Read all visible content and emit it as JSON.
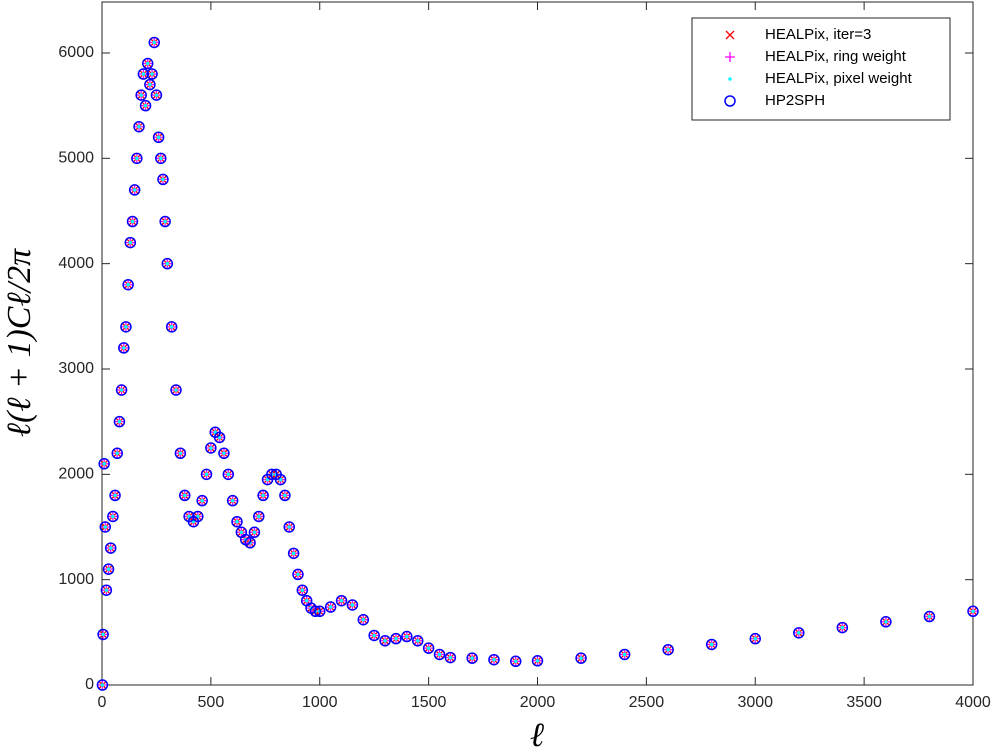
{
  "chart_data": {
    "type": "scatter",
    "x_label": "ℓ",
    "y_label": "ℓ(ℓ + 1)Cℓ/2π",
    "xlim": [
      0,
      4000
    ],
    "ylim": [
      0,
      6484
    ],
    "xticks": [
      0,
      500,
      1000,
      1500,
      2000,
      2500,
      3000,
      3500,
      4000
    ],
    "yticks": [
      0,
      1000,
      2000,
      3000,
      4000,
      5000,
      6000
    ],
    "grid": false,
    "legend": "upper right",
    "x": [
      2,
      5,
      10,
      15,
      20,
      30,
      40,
      50,
      60,
      70,
      80,
      90,
      100,
      110,
      120,
      130,
      140,
      150,
      160,
      170,
      180,
      190,
      200,
      210,
      220,
      230,
      240,
      250,
      260,
      270,
      280,
      290,
      300,
      320,
      340,
      360,
      380,
      400,
      420,
      440,
      460,
      480,
      500,
      520,
      540,
      560,
      580,
      600,
      620,
      640,
      660,
      680,
      700,
      720,
      740,
      760,
      780,
      800,
      820,
      840,
      860,
      880,
      900,
      920,
      940,
      960,
      980,
      1000,
      1050,
      1100,
      1150,
      1200,
      1250,
      1300,
      1350,
      1400,
      1450,
      1500,
      1550,
      1600,
      1700,
      1800,
      1900,
      2000,
      2200,
      2400,
      2600,
      2800,
      3000,
      3200,
      3400,
      3600,
      3800,
      4000
    ],
    "series": [
      {
        "name": "HEALPix, iter=3",
        "color": "#ff0000",
        "marker": "x",
        "values": [
          0,
          480,
          2100,
          1500,
          900,
          1100,
          1300,
          1600,
          1800,
          2200,
          2500,
          2800,
          3200,
          3400,
          3800,
          4200,
          4400,
          4700,
          5000,
          5300,
          5600,
          5800,
          5500,
          5900,
          5700,
          5800,
          6100,
          5600,
          5200,
          5000,
          4800,
          4400,
          4000,
          3400,
          2800,
          2200,
          1800,
          1600,
          1550,
          1600,
          1750,
          2000,
          2250,
          2400,
          2350,
          2200,
          2000,
          1750,
          1550,
          1450,
          1380,
          1350,
          1450,
          1600,
          1800,
          1950,
          2000,
          2000,
          1950,
          1800,
          1500,
          1250,
          1050,
          900,
          800,
          730,
          700,
          700,
          740,
          800,
          760,
          620,
          470,
          420,
          440,
          460,
          420,
          350,
          290,
          260,
          255,
          240,
          225,
          230,
          255,
          290,
          335,
          385,
          440,
          495,
          545,
          600,
          650,
          700
        ]
      },
      {
        "name": "HEALPix, ring weight",
        "color": "#ff00ff",
        "marker": "+",
        "values": [
          0,
          480,
          2100,
          1500,
          900,
          1100,
          1300,
          1600,
          1800,
          2200,
          2500,
          2800,
          3200,
          3400,
          3800,
          4200,
          4400,
          4700,
          5000,
          5300,
          5600,
          5800,
          5500,
          5900,
          5700,
          5800,
          6100,
          5600,
          5200,
          5000,
          4800,
          4400,
          4000,
          3400,
          2800,
          2200,
          1800,
          1600,
          1550,
          1600,
          1750,
          2000,
          2250,
          2400,
          2350,
          2200,
          2000,
          1750,
          1550,
          1450,
          1380,
          1350,
          1450,
          1600,
          1800,
          1950,
          2000,
          2000,
          1950,
          1800,
          1500,
          1250,
          1050,
          900,
          800,
          730,
          700,
          700,
          740,
          800,
          760,
          620,
          470,
          420,
          440,
          460,
          420,
          350,
          290,
          260,
          255,
          240,
          225,
          230,
          255,
          290,
          335,
          385,
          440,
          495,
          545,
          600,
          650,
          700
        ]
      },
      {
        "name": "HEALPix, pixel weight",
        "color": "#00ffff",
        "marker": ".",
        "values": [
          0,
          480,
          2100,
          1500,
          900,
          1100,
          1300,
          1600,
          1800,
          2200,
          2500,
          2800,
          3200,
          3400,
          3800,
          4200,
          4400,
          4700,
          5000,
          5300,
          5600,
          5800,
          5500,
          5900,
          5700,
          5800,
          6100,
          5600,
          5200,
          5000,
          4800,
          4400,
          4000,
          3400,
          2800,
          2200,
          1800,
          1600,
          1550,
          1600,
          1750,
          2000,
          2250,
          2400,
          2350,
          2200,
          2000,
          1750,
          1550,
          1450,
          1380,
          1350,
          1450,
          1600,
          1800,
          1950,
          2000,
          2000,
          1950,
          1800,
          1500,
          1250,
          1050,
          900,
          800,
          730,
          700,
          700,
          740,
          800,
          760,
          620,
          470,
          420,
          440,
          460,
          420,
          350,
          290,
          260,
          255,
          240,
          225,
          230,
          255,
          290,
          335,
          385,
          440,
          495,
          545,
          600,
          650,
          700
        ]
      },
      {
        "name": "HP2SPH",
        "color": "#0000ff",
        "marker": "o",
        "values": [
          0,
          480,
          2100,
          1500,
          900,
          1100,
          1300,
          1600,
          1800,
          2200,
          2500,
          2800,
          3200,
          3400,
          3800,
          4200,
          4400,
          4700,
          5000,
          5300,
          5600,
          5800,
          5500,
          5900,
          5700,
          5800,
          6100,
          5600,
          5200,
          5000,
          4800,
          4400,
          4000,
          3400,
          2800,
          2200,
          1800,
          1600,
          1550,
          1600,
          1750,
          2000,
          2250,
          2400,
          2350,
          2200,
          2000,
          1750,
          1550,
          1450,
          1380,
          1350,
          1450,
          1600,
          1800,
          1950,
          2000,
          2000,
          1950,
          1800,
          1500,
          1250,
          1050,
          900,
          800,
          730,
          700,
          700,
          740,
          800,
          760,
          620,
          470,
          420,
          440,
          460,
          420,
          350,
          290,
          260,
          255,
          240,
          225,
          230,
          255,
          290,
          335,
          385,
          440,
          495,
          545,
          600,
          650,
          700
        ]
      }
    ]
  }
}
